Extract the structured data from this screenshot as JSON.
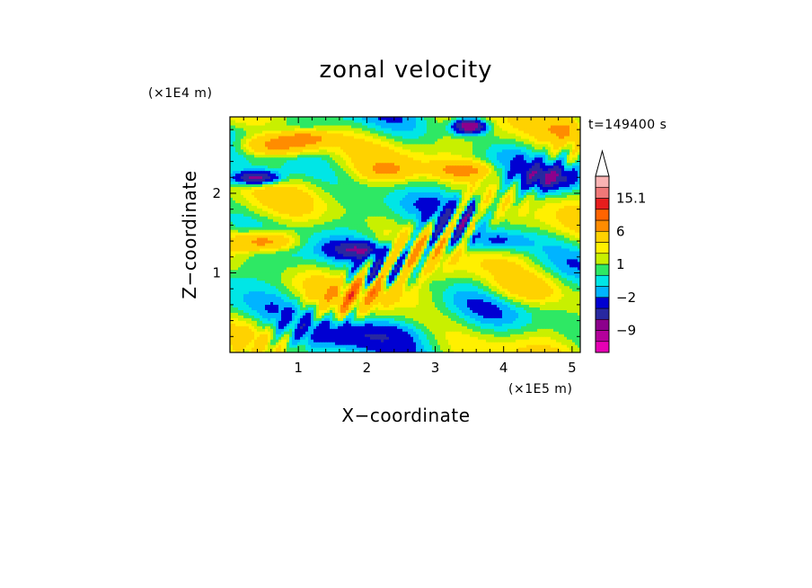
{
  "chart_data": {
    "type": "heatmap",
    "title": "zonal velocity",
    "xlabel": "X−coordinate",
    "ylabel": "Z−coordinate",
    "x_scale_note": "(×1E5 m)",
    "y_scale_note": "(×1E4 m)",
    "time_label": "t=149400 s",
    "xlim": [
      0,
      5.12
    ],
    "ylim": [
      0,
      2.96
    ],
    "x_ticks": [
      1,
      2,
      3,
      4,
      5
    ],
    "y_ticks": [
      1,
      2
    ],
    "colorbar": {
      "levels": [
        -12,
        -9,
        -6,
        -4,
        -2,
        -1,
        0,
        1,
        2,
        3,
        6,
        9,
        12,
        15.1
      ],
      "colors": [
        "#e600b4",
        "#b4009b",
        "#8c008c",
        "#2828a0",
        "#0000d2",
        "#00b4ff",
        "#00e6e6",
        "#2ee864",
        "#c8f000",
        "#fff000",
        "#ffd200",
        "#ff8c00",
        "#ff6400",
        "#e61e1e",
        "#f07878",
        "#fab4b4"
      ],
      "labels": [
        "15.1",
        "6",
        "1",
        "−2",
        "−9"
      ],
      "label_values": [
        15.1,
        6,
        1,
        -2,
        -9
      ],
      "extend_max": true
    }
  }
}
